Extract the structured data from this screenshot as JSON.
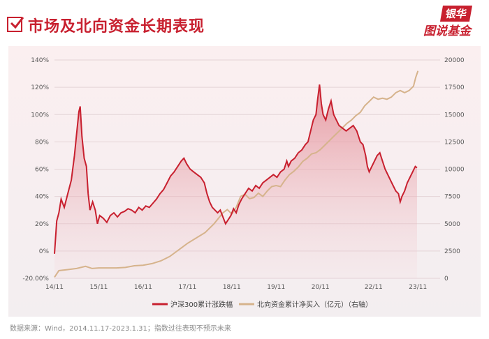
{
  "header": {
    "title": "市场及北向资金长期表现",
    "brand_top": "银华",
    "brand_bottom": "图说基金"
  },
  "colors": {
    "accent": "#c8202f",
    "hs300_line": "#c8202f",
    "northbound_line": "#d6b38c",
    "area_fill": "#e07b86"
  },
  "chart_data": {
    "type": "line",
    "x_ticks": [
      "14/11",
      "15/11",
      "16/11",
      "17/11",
      "18/11",
      "19/11",
      "20/11",
      "22/11",
      "23/11"
    ],
    "x_tick_positions": [
      0,
      1,
      2,
      3,
      4,
      5,
      6,
      7.2,
      8.2
    ],
    "x_range": [
      0,
      8.7
    ],
    "y_left_ticks": [
      "140%",
      "120%",
      "100%",
      "80%",
      "60%",
      "40%",
      "20%",
      "0%",
      "-20.00%"
    ],
    "y_left_range": [
      -20,
      140
    ],
    "y_right_ticks": [
      "20000",
      "17500",
      "15000",
      "12500",
      "10000",
      "7500",
      "5000",
      "2500",
      "0"
    ],
    "y_right_range": [
      0,
      20000
    ],
    "series": [
      {
        "name": "沪深300累计涨跌幅",
        "axis": "left",
        "points": [
          [
            0,
            -2
          ],
          [
            0.05,
            22
          ],
          [
            0.1,
            28
          ],
          [
            0.15,
            38
          ],
          [
            0.22,
            32
          ],
          [
            0.3,
            42
          ],
          [
            0.38,
            52
          ],
          [
            0.45,
            70
          ],
          [
            0.5,
            86
          ],
          [
            0.55,
            102
          ],
          [
            0.58,
            106
          ],
          [
            0.62,
            84
          ],
          [
            0.67,
            68
          ],
          [
            0.72,
            62
          ],
          [
            0.76,
            42
          ],
          [
            0.8,
            30
          ],
          [
            0.86,
            36
          ],
          [
            0.92,
            30
          ],
          [
            0.97,
            20
          ],
          [
            1.02,
            26
          ],
          [
            1.1,
            24
          ],
          [
            1.18,
            21
          ],
          [
            1.26,
            26
          ],
          [
            1.34,
            28
          ],
          [
            1.42,
            25
          ],
          [
            1.5,
            28
          ],
          [
            1.58,
            29
          ],
          [
            1.66,
            31
          ],
          [
            1.74,
            30
          ],
          [
            1.82,
            28
          ],
          [
            1.9,
            32
          ],
          [
            1.98,
            30
          ],
          [
            2.06,
            33
          ],
          [
            2.14,
            32
          ],
          [
            2.22,
            35
          ],
          [
            2.3,
            38
          ],
          [
            2.38,
            42
          ],
          [
            2.46,
            45
          ],
          [
            2.54,
            50
          ],
          [
            2.62,
            55
          ],
          [
            2.7,
            58
          ],
          [
            2.78,
            62
          ],
          [
            2.86,
            66
          ],
          [
            2.92,
            68
          ],
          [
            2.98,
            64
          ],
          [
            3.06,
            60
          ],
          [
            3.14,
            58
          ],
          [
            3.22,
            56
          ],
          [
            3.3,
            54
          ],
          [
            3.38,
            50
          ],
          [
            3.44,
            42
          ],
          [
            3.5,
            36
          ],
          [
            3.56,
            32
          ],
          [
            3.62,
            30
          ],
          [
            3.68,
            28
          ],
          [
            3.74,
            30
          ],
          [
            3.8,
            25
          ],
          [
            3.86,
            20
          ],
          [
            3.92,
            23
          ],
          [
            3.98,
            26
          ],
          [
            4.04,
            31
          ],
          [
            4.1,
            28
          ],
          [
            4.16,
            34
          ],
          [
            4.22,
            38
          ],
          [
            4.3,
            42
          ],
          [
            4.38,
            46
          ],
          [
            4.46,
            44
          ],
          [
            4.54,
            48
          ],
          [
            4.62,
            46
          ],
          [
            4.7,
            50
          ],
          [
            4.78,
            52
          ],
          [
            4.86,
            54
          ],
          [
            4.94,
            56
          ],
          [
            5.02,
            54
          ],
          [
            5.1,
            58
          ],
          [
            5.18,
            60
          ],
          [
            5.24,
            66
          ],
          [
            5.28,
            62
          ],
          [
            5.34,
            66
          ],
          [
            5.42,
            68
          ],
          [
            5.5,
            72
          ],
          [
            5.58,
            74
          ],
          [
            5.66,
            78
          ],
          [
            5.72,
            80
          ],
          [
            5.78,
            88
          ],
          [
            5.84,
            96
          ],
          [
            5.9,
            100
          ],
          [
            5.94,
            112
          ],
          [
            5.98,
            122
          ],
          [
            6.02,
            108
          ],
          [
            6.06,
            100
          ],
          [
            6.12,
            96
          ],
          [
            6.18,
            104
          ],
          [
            6.24,
            110
          ],
          [
            6.3,
            100
          ],
          [
            6.36,
            96
          ],
          [
            6.42,
            92
          ],
          [
            6.5,
            90
          ],
          [
            6.58,
            88
          ],
          [
            6.66,
            90
          ],
          [
            6.74,
            92
          ],
          [
            6.82,
            88
          ],
          [
            6.9,
            80
          ],
          [
            6.96,
            78
          ],
          [
            7.02,
            70
          ],
          [
            7.06,
            62
          ],
          [
            7.1,
            58
          ],
          [
            7.16,
            62
          ],
          [
            7.22,
            66
          ],
          [
            7.28,
            70
          ],
          [
            7.34,
            72
          ],
          [
            7.4,
            66
          ],
          [
            7.46,
            60
          ],
          [
            7.52,
            56
          ],
          [
            7.58,
            52
          ],
          [
            7.64,
            48
          ],
          [
            7.7,
            44
          ],
          [
            7.76,
            42
          ],
          [
            7.8,
            36
          ],
          [
            7.84,
            40
          ],
          [
            7.9,
            44
          ],
          [
            7.96,
            50
          ],
          [
            8.02,
            54
          ],
          [
            8.08,
            58
          ],
          [
            8.14,
            62
          ],
          [
            8.18,
            61
          ]
        ]
      },
      {
        "name": "北向资金累计净买入（亿元）（右轴）",
        "axis": "right",
        "points": [
          [
            0,
            100
          ],
          [
            0.1,
            700
          ],
          [
            0.3,
            800
          ],
          [
            0.5,
            900
          ],
          [
            0.7,
            1100
          ],
          [
            0.85,
            900
          ],
          [
            1.0,
            950
          ],
          [
            1.2,
            950
          ],
          [
            1.4,
            950
          ],
          [
            1.6,
            1000
          ],
          [
            1.8,
            1150
          ],
          [
            2.0,
            1200
          ],
          [
            2.2,
            1350
          ],
          [
            2.4,
            1600
          ],
          [
            2.6,
            2000
          ],
          [
            2.8,
            2600
          ],
          [
            3.0,
            3200
          ],
          [
            3.2,
            3700
          ],
          [
            3.4,
            4200
          ],
          [
            3.6,
            5000
          ],
          [
            3.8,
            6000
          ],
          [
            3.9,
            6300
          ],
          [
            4.0,
            5900
          ],
          [
            4.1,
            6500
          ],
          [
            4.2,
            7500
          ],
          [
            4.3,
            7700
          ],
          [
            4.4,
            7300
          ],
          [
            4.5,
            7400
          ],
          [
            4.6,
            7800
          ],
          [
            4.7,
            7500
          ],
          [
            4.8,
            8000
          ],
          [
            4.9,
            8400
          ],
          [
            5.0,
            8500
          ],
          [
            5.1,
            8400
          ],
          [
            5.2,
            9000
          ],
          [
            5.3,
            9500
          ],
          [
            5.4,
            9800
          ],
          [
            5.5,
            10200
          ],
          [
            5.6,
            10700
          ],
          [
            5.7,
            11000
          ],
          [
            5.8,
            11400
          ],
          [
            5.9,
            11500
          ],
          [
            6.0,
            11800
          ],
          [
            6.1,
            12200
          ],
          [
            6.2,
            12600
          ],
          [
            6.3,
            13000
          ],
          [
            6.4,
            13400
          ],
          [
            6.5,
            13800
          ],
          [
            6.6,
            14200
          ],
          [
            6.7,
            14500
          ],
          [
            6.8,
            14900
          ],
          [
            6.9,
            15200
          ],
          [
            7.0,
            15800
          ],
          [
            7.1,
            16200
          ],
          [
            7.2,
            16600
          ],
          [
            7.3,
            16400
          ],
          [
            7.4,
            16500
          ],
          [
            7.5,
            16400
          ],
          [
            7.6,
            16600
          ],
          [
            7.7,
            17000
          ],
          [
            7.8,
            17200
          ],
          [
            7.9,
            17000
          ],
          [
            8.0,
            17200
          ],
          [
            8.1,
            17600
          ],
          [
            8.15,
            18400
          ],
          [
            8.2,
            19000
          ]
        ]
      }
    ],
    "legend": [
      "沪深300累计涨跌幅",
      "北向资金累计净买入（亿元）（右轴）"
    ],
    "legend_position": "bottom-center",
    "grid": true
  },
  "footnote": "数据来源：Wind，2014.11.17-2023.1.31；指数过往表现不预示未来"
}
